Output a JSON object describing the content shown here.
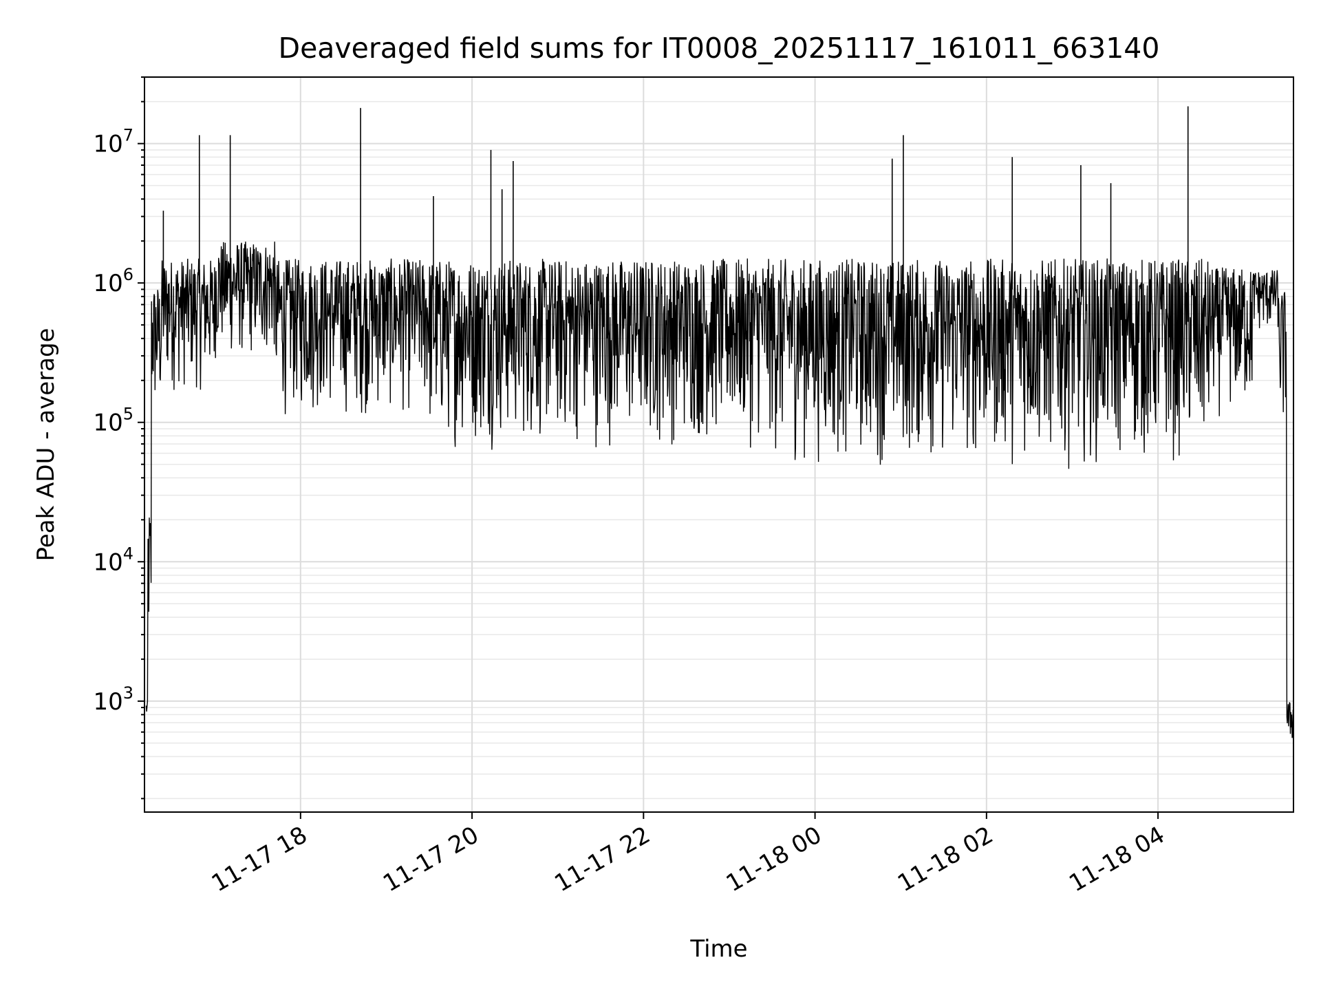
{
  "chart_data": {
    "type": "line",
    "title": "Deaveraged field sums for IT0008_20251117_161011_663140",
    "xlabel": "Time",
    "ylabel": "Peak ADU - average",
    "yscale": "log",
    "ylim": [
      160,
      30000000
    ],
    "x_range_hours": [
      -1.82,
      11.58
    ],
    "x_ticks": [
      {
        "label": "11-17 18",
        "hour": 0
      },
      {
        "label": "11-17 20",
        "hour": 2
      },
      {
        "label": "11-17 22",
        "hour": 4
      },
      {
        "label": "11-18 00",
        "hour": 6
      },
      {
        "label": "11-18 02",
        "hour": 8
      },
      {
        "label": "11-18 04",
        "hour": 10
      }
    ],
    "y_ticks": [
      {
        "base": "10",
        "exp": "3",
        "value": 1000
      },
      {
        "base": "10",
        "exp": "4",
        "value": 10000
      },
      {
        "base": "10",
        "exp": "5",
        "value": 100000
      },
      {
        "base": "10",
        "exp": "6",
        "value": 1000000
      },
      {
        "base": "10",
        "exp": "7",
        "value": 10000000
      }
    ],
    "grid": true,
    "series": [
      {
        "name": "Deaveraged field sums",
        "color": "#000000",
        "envelope_segments": [
          {
            "h0": -1.8,
            "h1": -1.78,
            "low": 700,
            "high": 1000
          },
          {
            "h0": -1.78,
            "h1": -1.74,
            "low": 1500,
            "high": 25000
          },
          {
            "h0": -1.74,
            "h1": -1.62,
            "low": 80000,
            "high": 1000000
          },
          {
            "h0": -1.62,
            "h1": -1.0,
            "low": 150000,
            "high": 1500000
          },
          {
            "h0": -1.0,
            "h1": -0.3,
            "low": 250000,
            "high": 2000000
          },
          {
            "h0": -0.3,
            "h1": 1.5,
            "low": 100000,
            "high": 1500000
          },
          {
            "h0": 1.5,
            "h1": 5.5,
            "low": 60000,
            "high": 1500000
          },
          {
            "h0": 5.5,
            "h1": 10.6,
            "low": 45000,
            "high": 1500000
          },
          {
            "h0": 10.6,
            "h1": 11.1,
            "low": 100000,
            "high": 1300000
          },
          {
            "h0": 11.1,
            "h1": 11.4,
            "low": 400000,
            "high": 1250000
          },
          {
            "h0": 11.4,
            "h1": 11.5,
            "low": 60000,
            "high": 900000
          },
          {
            "h0": 11.5,
            "h1": 11.58,
            "low": 450,
            "high": 1000
          }
        ],
        "spikes": [
          {
            "hour": -1.6,
            "value": 3300000
          },
          {
            "hour": -1.18,
            "value": 11500000
          },
          {
            "hour": -0.82,
            "value": 11500000
          },
          {
            "hour": 0.7,
            "value": 18000000
          },
          {
            "hour": 1.55,
            "value": 4200000
          },
          {
            "hour": 2.22,
            "value": 9000000
          },
          {
            "hour": 2.35,
            "value": 4700000
          },
          {
            "hour": 2.48,
            "value": 7500000
          },
          {
            "hour": 6.9,
            "value": 7800000
          },
          {
            "hour": 7.03,
            "value": 11500000
          },
          {
            "hour": 8.3,
            "value": 8000000
          },
          {
            "hour": 9.1,
            "value": 7000000
          },
          {
            "hour": 9.45,
            "value": 5200000
          },
          {
            "hour": 10.35,
            "value": 18500000
          }
        ]
      }
    ]
  }
}
